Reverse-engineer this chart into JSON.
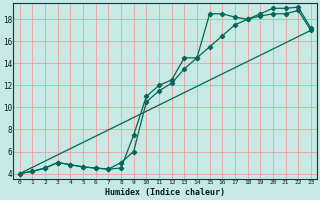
{
  "xlabel": "Humidex (Indice chaleur)",
  "xlim": [
    -0.5,
    23.5
  ],
  "ylim": [
    3.5,
    19.5
  ],
  "xticks": [
    0,
    1,
    2,
    3,
    4,
    5,
    6,
    7,
    8,
    9,
    10,
    11,
    12,
    13,
    14,
    15,
    16,
    17,
    18,
    19,
    20,
    21,
    22,
    23
  ],
  "yticks": [
    4,
    6,
    8,
    10,
    12,
    14,
    16,
    18
  ],
  "bg_color": "#c8e8e4",
  "grid_color": "#f0a0a0",
  "line_color": "#006858",
  "line1_x": [
    0,
    1,
    2,
    3,
    4,
    5,
    6,
    7,
    8,
    9,
    10,
    11,
    12,
    13,
    14,
    15,
    16,
    17,
    18,
    19,
    20,
    21,
    22,
    23
  ],
  "line1_y": [
    4,
    4.2,
    4.5,
    5.0,
    4.8,
    4.6,
    4.5,
    4.4,
    4.5,
    7.5,
    11.0,
    12.0,
    12.5,
    14.5,
    14.5,
    18.5,
    18.5,
    18.2,
    18.0,
    18.5,
    19.0,
    19.0,
    19.1,
    17.2
  ],
  "line2_x": [
    0,
    1,
    2,
    3,
    4,
    5,
    6,
    7,
    8,
    9,
    10,
    11,
    12,
    13,
    14,
    15,
    16,
    17,
    18,
    19,
    20,
    21,
    22,
    23
  ],
  "line2_y": [
    4,
    4.2,
    4.5,
    5.0,
    4.8,
    4.6,
    4.5,
    4.4,
    5.0,
    6.0,
    10.5,
    11.5,
    12.2,
    13.5,
    14.5,
    15.5,
    16.5,
    17.5,
    18.0,
    18.3,
    18.5,
    18.5,
    18.8,
    17.0
  ],
  "line3_x": [
    0,
    23
  ],
  "line3_y": [
    4,
    17.0
  ]
}
